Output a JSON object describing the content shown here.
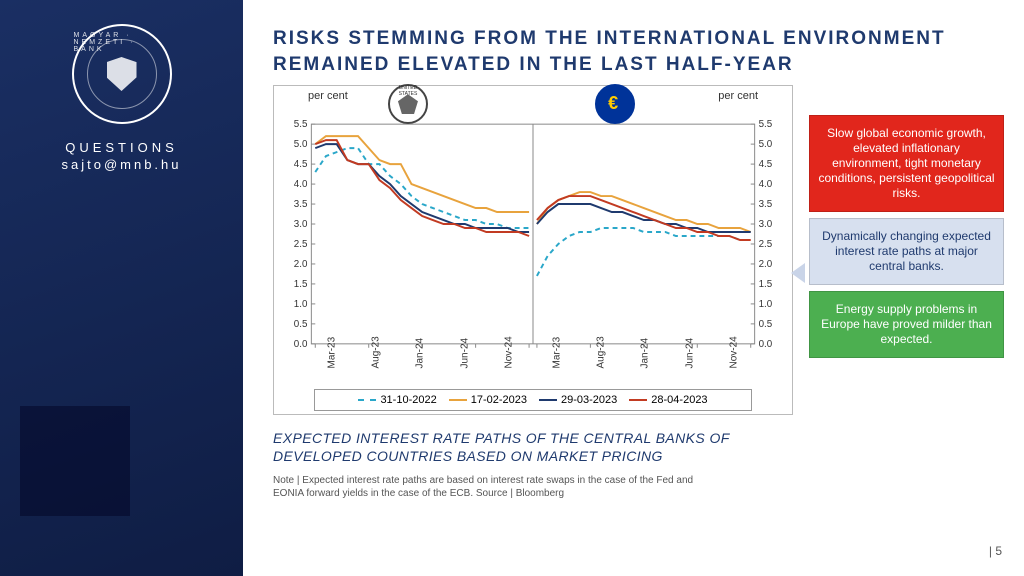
{
  "sidebar": {
    "org_ring": "MAGYAR · NEMZETI · BANK",
    "questions": "QUESTIONS",
    "email": "sajto@mnb.hu"
  },
  "title": "RISKS STEMMING FROM THE INTERNATIONAL ENVIRONMENT REMAINED ELEVATED IN THE LAST HALF-YEAR",
  "subtitle": "EXPECTED INTEREST RATE PATHS OF THE CENTRAL BANKS OF DEVELOPED COUNTRIES BASED ON MARKET PRICING",
  "note": "Note | Expected interest rate paths are based on interest rate swaps in the case of the Fed and EONIA forward yields in the case of the ECB. Source | Bloomberg",
  "page_number": "| 5",
  "axis_unit": "per cent",
  "y": {
    "min": 0.0,
    "max": 5.5,
    "step": 0.5,
    "ticks": [
      "0.0",
      "0.5",
      "1.0",
      "1.5",
      "2.0",
      "2.5",
      "3.0",
      "3.5",
      "4.0",
      "4.5",
      "5.0",
      "5.5"
    ]
  },
  "x_labels": [
    "Mar-23",
    "Aug-23",
    "Jan-24",
    "Jun-24",
    "Nov-24"
  ],
  "series_colors": {
    "s2022_10_31": "#2aa7c9",
    "s2023_02_17": "#e8a33d",
    "s2023_03_29": "#1f3a6e",
    "s2023_04_28": "#c23b22"
  },
  "legend": [
    {
      "label": "31-10-2022",
      "key": "s2022_10_31",
      "dash": true
    },
    {
      "label": "17-02-2023",
      "key": "s2023_02_17",
      "dash": false
    },
    {
      "label": "29-03-2023",
      "key": "s2023_03_29",
      "dash": false
    },
    {
      "label": "28-04-2023",
      "key": "s2023_04_28",
      "dash": false
    }
  ],
  "panels": [
    {
      "name": "fed",
      "series": {
        "s2022_10_31": [
          4.3,
          4.7,
          4.8,
          4.9,
          4.9,
          4.5,
          4.5,
          4.2,
          4.0,
          3.7,
          3.5,
          3.4,
          3.3,
          3.2,
          3.1,
          3.1,
          3.0,
          3.0,
          2.9,
          2.9,
          2.9
        ],
        "s2023_02_17": [
          5.0,
          5.2,
          5.2,
          5.2,
          5.2,
          4.9,
          4.6,
          4.5,
          4.5,
          4.0,
          3.9,
          3.8,
          3.7,
          3.6,
          3.5,
          3.4,
          3.4,
          3.3,
          3.3,
          3.3,
          3.3
        ],
        "s2023_03_29": [
          4.9,
          5.0,
          5.0,
          4.6,
          4.5,
          4.5,
          4.2,
          4.0,
          3.7,
          3.5,
          3.3,
          3.2,
          3.1,
          3.0,
          3.0,
          2.9,
          2.9,
          2.9,
          2.9,
          2.8,
          2.8
        ],
        "s2023_04_28": [
          5.0,
          5.1,
          5.1,
          4.6,
          4.5,
          4.5,
          4.1,
          3.9,
          3.6,
          3.4,
          3.2,
          3.1,
          3.0,
          3.0,
          2.9,
          2.9,
          2.8,
          2.8,
          2.8,
          2.8,
          2.7
        ]
      }
    },
    {
      "name": "ecb",
      "series": {
        "s2022_10_31": [
          1.7,
          2.2,
          2.5,
          2.7,
          2.8,
          2.8,
          2.9,
          2.9,
          2.9,
          2.9,
          2.8,
          2.8,
          2.8,
          2.7,
          2.7,
          2.7,
          2.7,
          2.7,
          2.7,
          2.6,
          2.6
        ],
        "s2023_02_17": [
          3.0,
          3.4,
          3.6,
          3.7,
          3.8,
          3.8,
          3.7,
          3.7,
          3.6,
          3.5,
          3.4,
          3.3,
          3.2,
          3.1,
          3.1,
          3.0,
          3.0,
          2.9,
          2.9,
          2.9,
          2.8
        ],
        "s2023_03_29": [
          3.0,
          3.3,
          3.5,
          3.5,
          3.5,
          3.5,
          3.4,
          3.3,
          3.3,
          3.2,
          3.1,
          3.1,
          3.0,
          3.0,
          2.9,
          2.9,
          2.8,
          2.8,
          2.8,
          2.8,
          2.8
        ],
        "s2023_04_28": [
          3.1,
          3.4,
          3.6,
          3.7,
          3.7,
          3.7,
          3.6,
          3.5,
          3.4,
          3.3,
          3.2,
          3.1,
          3.0,
          2.9,
          2.9,
          2.8,
          2.8,
          2.7,
          2.7,
          2.6,
          2.6
        ]
      }
    }
  ],
  "callouts": [
    {
      "cls": "c-red",
      "text": "Slow global economic growth, elevated inflationary environment, tight monetary conditions, persistent geopolitical risks."
    },
    {
      "cls": "c-blue",
      "text": "Dynamically changing expected interest rate paths at major central banks."
    },
    {
      "cls": "c-green",
      "text": "Energy supply problems in Europe have proved milder than expected."
    }
  ]
}
